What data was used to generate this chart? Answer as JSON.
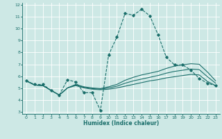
{
  "xlabel": "Humidex (Indice chaleur)",
  "ylabel": "",
  "xlim": [
    -0.5,
    23.5
  ],
  "ylim": [
    2.8,
    12.2
  ],
  "xticks": [
    0,
    1,
    2,
    3,
    4,
    5,
    6,
    7,
    8,
    9,
    10,
    11,
    12,
    13,
    14,
    15,
    16,
    17,
    18,
    19,
    20,
    21,
    22,
    23
  ],
  "yticks": [
    3,
    4,
    5,
    6,
    7,
    8,
    9,
    10,
    11,
    12
  ],
  "bg_color": "#cde8e5",
  "grid_color": "#ffffff",
  "line_color": "#1a6e6a",
  "lines": [
    {
      "x": [
        0,
        1,
        2,
        3,
        4,
        5,
        6,
        7,
        8,
        9,
        10,
        11,
        12,
        13,
        14,
        15,
        16,
        17,
        18,
        19,
        20,
        21,
        22,
        23
      ],
      "y": [
        5.6,
        5.3,
        5.3,
        4.8,
        4.4,
        5.7,
        5.5,
        4.6,
        4.6,
        3.1,
        7.8,
        9.3,
        11.3,
        11.15,
        11.65,
        11.1,
        9.5,
        7.6,
        6.95,
        6.95,
        6.5,
        5.8,
        5.4,
        5.2
      ],
      "marker": "D",
      "markersize": 1.8,
      "linewidth": 0.8,
      "linestyle": "--"
    },
    {
      "x": [
        0,
        1,
        2,
        3,
        4,
        5,
        6,
        7,
        8,
        9,
        10,
        11,
        12,
        13,
        14,
        15,
        16,
        17,
        18,
        19,
        20,
        21,
        22,
        23
      ],
      "y": [
        5.6,
        5.25,
        5.2,
        4.8,
        4.4,
        5.0,
        5.2,
        5.0,
        4.9,
        4.85,
        4.9,
        5.0,
        5.15,
        5.3,
        5.45,
        5.6,
        5.7,
        5.85,
        5.95,
        6.05,
        6.15,
        6.1,
        5.55,
        5.2
      ],
      "marker": null,
      "linewidth": 0.8,
      "linestyle": "-"
    },
    {
      "x": [
        0,
        1,
        2,
        3,
        4,
        5,
        6,
        7,
        8,
        9,
        10,
        11,
        12,
        13,
        14,
        15,
        16,
        17,
        18,
        19,
        20,
        21,
        22,
        23
      ],
      "y": [
        5.6,
        5.25,
        5.2,
        4.8,
        4.4,
        5.0,
        5.25,
        5.05,
        4.95,
        4.9,
        5.0,
        5.15,
        5.4,
        5.6,
        5.75,
        5.9,
        6.05,
        6.25,
        6.4,
        6.5,
        6.6,
        6.55,
        5.95,
        5.4
      ],
      "marker": null,
      "linewidth": 0.8,
      "linestyle": "-"
    },
    {
      "x": [
        0,
        1,
        2,
        3,
        4,
        5,
        6,
        7,
        8,
        9,
        10,
        11,
        12,
        13,
        14,
        15,
        16,
        17,
        18,
        19,
        20,
        21,
        22,
        23
      ],
      "y": [
        5.6,
        5.25,
        5.2,
        4.8,
        4.4,
        5.0,
        5.3,
        5.1,
        5.0,
        4.95,
        5.1,
        5.3,
        5.65,
        5.9,
        6.1,
        6.25,
        6.4,
        6.65,
        6.85,
        6.95,
        7.05,
        7.0,
        6.35,
        5.6
      ],
      "marker": null,
      "linewidth": 0.8,
      "linestyle": "-"
    }
  ],
  "tick_fontsize": 4.5,
  "xlabel_fontsize": 5.5
}
